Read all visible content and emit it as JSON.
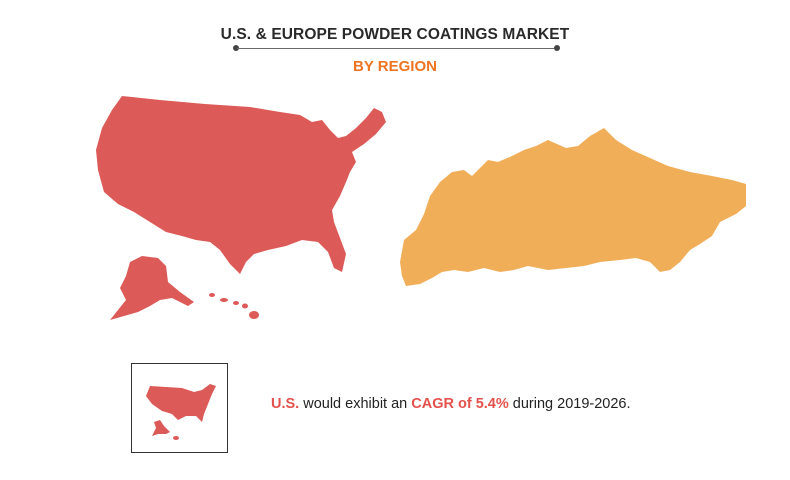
{
  "header": {
    "title": "U.S. & EUROPE POWDER COATINGS MARKET",
    "subtitle": "BY REGION"
  },
  "colors": {
    "us": "#dc5a57",
    "europe": "#f1ae58",
    "accent": "#ee7421",
    "text": "#222222",
    "highlight": "#e4514d"
  },
  "regions": [
    {
      "name": "U.S.",
      "color_key": "us"
    },
    {
      "name": "Europe",
      "color_key": "europe"
    }
  ],
  "legend": {
    "icon": "us-map-icon",
    "region_label": "U.S.",
    "text_mid": "would exhibit an",
    "cagr_label": "CAGR of 5.4%",
    "text_end": "during 2019-2026."
  }
}
